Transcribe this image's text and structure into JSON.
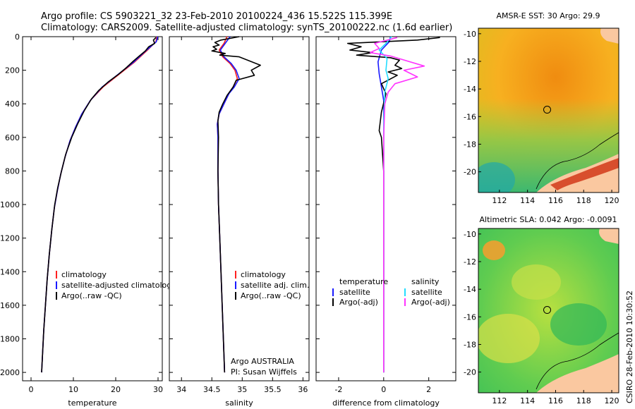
{
  "title_line1": "Argo profile: CS 5903221_32 23-Feb-2010 20100224_436 15.522S 115.399E",
  "title_line2": "Climatology: CARS2009. Satellite-adjusted climatology: synTS_20100222.nc (1.6d earlier)",
  "credit": "CSIRO 28-Feb-2010 10:30:52",
  "colors": {
    "climatology": "#ff2020",
    "satellite": "#1a1aff",
    "argo": "#000000",
    "sal_satellite": "#22ddff",
    "sal_argo": "#ff33ff",
    "land": "#fac8a0"
  },
  "chart_data": [
    {
      "type": "line",
      "xlabel": "temperature",
      "xlim": [
        -2,
        31
      ],
      "ylim": [
        2050,
        0
      ],
      "xticks": [
        "0",
        "10",
        "20",
        "30"
      ],
      "yticks": [
        "0",
        "200",
        "400",
        "600",
        "800",
        "1000",
        "1200",
        "1400",
        "1600",
        "1800",
        "2000"
      ],
      "legend": [
        "climatology",
        "satellite-adjusted climatology",
        "Argo(..raw -QC)"
      ],
      "series": [
        {
          "name": "climatology",
          "points": [
            [
              29.7,
              0
            ],
            [
              29.5,
              30
            ],
            [
              27.5,
              80
            ],
            [
              24.5,
              150
            ],
            [
              21,
              220
            ],
            [
              17,
              300
            ],
            [
              14,
              380
            ],
            [
              12,
              460
            ],
            [
              10.5,
              540
            ],
            [
              9.2,
              620
            ],
            [
              8,
              720
            ],
            [
              7,
              820
            ],
            [
              6.2,
              920
            ],
            [
              5.5,
              1020
            ],
            [
              4.9,
              1150
            ],
            [
              4.3,
              1300
            ],
            [
              3.8,
              1450
            ],
            [
              3.4,
              1600
            ],
            [
              3,
              1750
            ],
            [
              2.7,
              1900
            ],
            [
              2.5,
              2000
            ]
          ]
        },
        {
          "name": "satellite-adjusted climatology",
          "points": [
            [
              29.9,
              0
            ],
            [
              29.6,
              30
            ],
            [
              27.3,
              80
            ],
            [
              24.3,
              150
            ],
            [
              20.8,
              220
            ],
            [
              16.8,
              300
            ],
            [
              14,
              380
            ],
            [
              12,
              460
            ],
            [
              10.5,
              540
            ],
            [
              9.2,
              620
            ],
            [
              8,
              720
            ],
            [
              7,
              820
            ],
            [
              6.2,
              920
            ],
            [
              5.5,
              1020
            ],
            [
              4.9,
              1150
            ],
            [
              4.3,
              1300
            ],
            [
              3.8,
              1450
            ],
            [
              3.4,
              1600
            ],
            [
              3,
              1750
            ],
            [
              2.7,
              1900
            ],
            [
              2.5,
              2000
            ]
          ]
        },
        {
          "name": "Argo(..raw -QC)",
          "points": [
            [
              29.5,
              5
            ],
            [
              28.9,
              20
            ],
            [
              29.2,
              40
            ],
            [
              27.8,
              60
            ],
            [
              27,
              85
            ],
            [
              25.8,
              110
            ],
            [
              24.2,
              145
            ],
            [
              22.5,
              185
            ],
            [
              20.6,
              225
            ],
            [
              18.2,
              270
            ],
            [
              16,
              320
            ],
            [
              14.3,
              370
            ],
            [
              12.6,
              440
            ],
            [
              11,
              520
            ],
            [
              9.6,
              600
            ],
            [
              8.2,
              700
            ],
            [
              7.2,
              800
            ],
            [
              6.3,
              900
            ],
            [
              5.6,
              1000
            ],
            [
              4.9,
              1150
            ],
            [
              4.3,
              1300
            ],
            [
              3.8,
              1450
            ],
            [
              3.4,
              1600
            ],
            [
              3,
              1750
            ],
            [
              2.7,
              1900
            ],
            [
              2.5,
              2000
            ]
          ]
        }
      ]
    },
    {
      "type": "line",
      "xlabel": "salinity",
      "xlim": [
        33.8,
        36.1
      ],
      "ylim": [
        2050,
        0
      ],
      "xticks": [
        "34",
        "34.5",
        "35",
        "35.5",
        "36"
      ],
      "legend": [
        "climatology",
        "satellite adj. clim.",
        "Argo(..raw -QC)"
      ],
      "annotation": [
        "Argo AUSTRALIA",
        "PI: Susan Wijffels"
      ],
      "series": [
        {
          "name": "climatology",
          "points": [
            [
              34.75,
              0
            ],
            [
              34.7,
              40
            ],
            [
              34.62,
              80
            ],
            [
              34.68,
              120
            ],
            [
              34.8,
              160
            ],
            [
              34.88,
              200
            ],
            [
              34.92,
              250
            ],
            [
              34.85,
              300
            ],
            [
              34.78,
              340
            ],
            [
              34.7,
              400
            ],
            [
              34.62,
              460
            ],
            [
              34.59,
              520
            ],
            [
              34.6,
              600
            ],
            [
              34.6,
              800
            ],
            [
              34.61,
              1000
            ],
            [
              34.63,
              1200
            ],
            [
              34.65,
              1400
            ],
            [
              34.67,
              1600
            ],
            [
              34.69,
              1800
            ],
            [
              34.71,
              2000
            ]
          ]
        },
        {
          "name": "satellite adj. clim.",
          "points": [
            [
              34.8,
              0
            ],
            [
              34.72,
              40
            ],
            [
              34.64,
              80
            ],
            [
              34.7,
              120
            ],
            [
              34.82,
              160
            ],
            [
              34.9,
              200
            ],
            [
              34.95,
              250
            ],
            [
              34.87,
              300
            ],
            [
              34.78,
              340
            ],
            [
              34.7,
              400
            ],
            [
              34.62,
              460
            ],
            [
              34.59,
              520
            ],
            [
              34.6,
              600
            ],
            [
              34.6,
              800
            ],
            [
              34.61,
              1000
            ],
            [
              34.63,
              1200
            ],
            [
              34.65,
              1400
            ],
            [
              34.67,
              1600
            ],
            [
              34.69,
              1800
            ],
            [
              34.71,
              2000
            ]
          ]
        },
        {
          "name": "Argo(..raw -QC)",
          "points": [
            [
              34.95,
              0
            ],
            [
              34.65,
              20
            ],
            [
              34.55,
              35
            ],
            [
              34.62,
              50
            ],
            [
              34.52,
              60
            ],
            [
              34.58,
              75
            ],
            [
              34.5,
              85
            ],
            [
              34.72,
              100
            ],
            [
              34.63,
              110
            ],
            [
              34.95,
              120
            ],
            [
              35.3,
              170
            ],
            [
              35.15,
              200
            ],
            [
              35.2,
              230
            ],
            [
              34.9,
              260
            ],
            [
              34.85,
              300
            ],
            [
              34.75,
              350
            ],
            [
              34.68,
              400
            ],
            [
              34.62,
              450
            ],
            [
              34.6,
              500
            ],
            [
              34.61,
              600
            ],
            [
              34.6,
              800
            ],
            [
              34.61,
              1000
            ],
            [
              34.63,
              1200
            ],
            [
              34.65,
              1400
            ],
            [
              34.67,
              1600
            ],
            [
              34.69,
              1800
            ],
            [
              34.71,
              2000
            ]
          ]
        }
      ]
    },
    {
      "type": "line",
      "xlabel": "difference from climatology",
      "xlim": [
        -3,
        3.2
      ],
      "ylim": [
        2050,
        0
      ],
      "xticks": [
        "-2",
        "0",
        "2"
      ],
      "legend_headers": [
        "temperature",
        "salinity"
      ],
      "legend": [
        "satellite",
        "Argo(-adj)",
        "satellite",
        "Argo(-adj)"
      ],
      "series": [
        {
          "name": "temperature satellite",
          "points": [
            [
              0.3,
              0
            ],
            [
              0.25,
              30
            ],
            [
              -0.1,
              80
            ],
            [
              -0.25,
              150
            ],
            [
              -0.2,
              220
            ],
            [
              -0.1,
              300
            ],
            [
              0,
              380
            ],
            [
              0,
              2000
            ]
          ]
        },
        {
          "name": "temperature Argo(-adj)",
          "points": [
            [
              2.5,
              5
            ],
            [
              1.5,
              20
            ],
            [
              -1.6,
              40
            ],
            [
              -1,
              60
            ],
            [
              -1.5,
              80
            ],
            [
              -0.5,
              95
            ],
            [
              -1.2,
              110
            ],
            [
              0.3,
              125
            ],
            [
              0.7,
              140
            ],
            [
              0.5,
              170
            ],
            [
              0.8,
              190
            ],
            [
              0.2,
              210
            ],
            [
              0.6,
              230
            ],
            [
              -0.1,
              280
            ],
            [
              0.1,
              340
            ],
            [
              -0.1,
              450
            ],
            [
              -0.2,
              560
            ],
            [
              -0.1,
              600
            ],
            [
              0,
              800
            ],
            [
              0,
              2000
            ]
          ]
        },
        {
          "name": "salinity satellite",
          "points": [
            [
              0.35,
              0
            ],
            [
              0.1,
              40
            ],
            [
              -0.2,
              80
            ],
            [
              0.15,
              130
            ],
            [
              0.1,
              200
            ],
            [
              0.2,
              250
            ],
            [
              0.05,
              330
            ],
            [
              0,
              500
            ],
            [
              0,
              2000
            ]
          ]
        },
        {
          "name": "salinity Argo(-adj)",
          "points": [
            [
              0.6,
              5
            ],
            [
              -0.4,
              40
            ],
            [
              -0.2,
              70
            ],
            [
              -0.6,
              95
            ],
            [
              0.3,
              115
            ],
            [
              1.8,
              175
            ],
            [
              0.9,
              200
            ],
            [
              1.5,
              240
            ],
            [
              0.5,
              280
            ],
            [
              0.2,
              330
            ],
            [
              0.05,
              400
            ],
            [
              0,
              600
            ],
            [
              0,
              2000
            ]
          ]
        }
      ]
    },
    {
      "type": "heatmap",
      "title": "AMSR-E SST: 30 Argo: 29.9",
      "xlim": [
        110.5,
        120.5
      ],
      "ylim": [
        -21.5,
        -9.6
      ],
      "xticks": [
        "112",
        "114",
        "116",
        "118",
        "120"
      ],
      "yticks": [
        "-10",
        "-12",
        "-14",
        "-16",
        "-18",
        "-20"
      ],
      "marker": [
        115.4,
        -15.5
      ]
    },
    {
      "type": "heatmap",
      "title": "Altimetric SLA: 0.042 Argo: -0.0091",
      "xlim": [
        110.5,
        120.5
      ],
      "ylim": [
        -21.5,
        -9.6
      ],
      "xticks": [
        "112",
        "114",
        "116",
        "118",
        "120"
      ],
      "yticks": [
        "-10",
        "-12",
        "-14",
        "-16",
        "-18",
        "-20"
      ],
      "marker": [
        115.4,
        -15.5
      ]
    }
  ]
}
